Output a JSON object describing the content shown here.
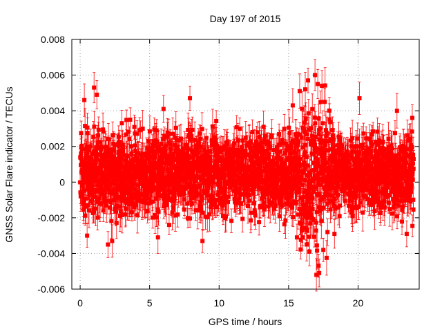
{
  "chart_data": {
    "type": "scatter",
    "title": "Day 197 of 2015",
    "xlabel": "GPS time / hours",
    "ylabel": "GNSS Solar Flare indicator / TECUs",
    "xlim": [
      -0.6,
      24.4
    ],
    "ylim": [
      -0.006,
      0.008
    ],
    "x_ticks": [
      "0",
      "5",
      "10",
      "15",
      "20"
    ],
    "x_tick_values": [
      0,
      5,
      10,
      15,
      20
    ],
    "y_ticks": [
      "-0.006",
      "-0.004",
      "-0.002",
      "0",
      "0.002",
      "0.004",
      "0.006",
      "0.008"
    ],
    "y_tick_values": [
      -0.006,
      -0.004,
      -0.002,
      0,
      0.002,
      0.004,
      0.006,
      0.008
    ],
    "grid": true,
    "series_color": "#ff0000",
    "series": [
      {
        "marker": "square",
        "error_bars": true,
        "x_range": [
          0.0,
          24.0
        ],
        "typical_min": -0.0025,
        "typical_max": 0.0035,
        "typical_error": 0.0008,
        "enhanced_interval": [
          15.8,
          18.0
        ],
        "enhanced_min": -0.0052,
        "enhanced_max": 0.006,
        "points": [
          {
            "x": 0.3,
            "y": 0.0046
          },
          {
            "x": 0.5,
            "y": -0.003
          },
          {
            "x": 1.0,
            "y": 0.0053
          },
          {
            "x": 1.2,
            "y": 0.0049
          },
          {
            "x": 2.0,
            "y": -0.0035
          },
          {
            "x": 2.3,
            "y": -0.0033
          },
          {
            "x": 3.0,
            "y": 0.0033
          },
          {
            "x": 3.6,
            "y": 0.0035
          },
          {
            "x": 5.6,
            "y": -0.0031
          },
          {
            "x": 6.0,
            "y": 0.0041
          },
          {
            "x": 7.9,
            "y": 0.0047
          },
          {
            "x": 8.8,
            "y": -0.0033
          },
          {
            "x": 13.2,
            "y": 0.0031
          },
          {
            "x": 15.3,
            "y": 0.0043
          },
          {
            "x": 15.6,
            "y": -0.0031
          },
          {
            "x": 15.8,
            "y": 0.0051
          },
          {
            "x": 16.0,
            "y": -0.0026
          },
          {
            "x": 16.2,
            "y": 0.0052
          },
          {
            "x": 16.3,
            "y": -0.0035
          },
          {
            "x": 16.4,
            "y": 0.0057
          },
          {
            "x": 16.5,
            "y": -0.0039
          },
          {
            "x": 16.9,
            "y": 0.006
          },
          {
            "x": 17.0,
            "y": -0.0052
          },
          {
            "x": 17.1,
            "y": 0.0055
          },
          {
            "x": 17.2,
            "y": -0.0051
          },
          {
            "x": 17.4,
            "y": 0.0054
          },
          {
            "x": 17.5,
            "y": -0.0038
          },
          {
            "x": 17.6,
            "y": 0.0045
          },
          {
            "x": 17.8,
            "y": -0.0028
          },
          {
            "x": 18.3,
            "y": -0.0029
          },
          {
            "x": 20.1,
            "y": 0.0047
          },
          {
            "x": 22.8,
            "y": 0.004
          },
          {
            "x": 23.5,
            "y": -0.0029
          },
          {
            "x": 23.9,
            "y": 0.0036
          }
        ]
      }
    ]
  }
}
